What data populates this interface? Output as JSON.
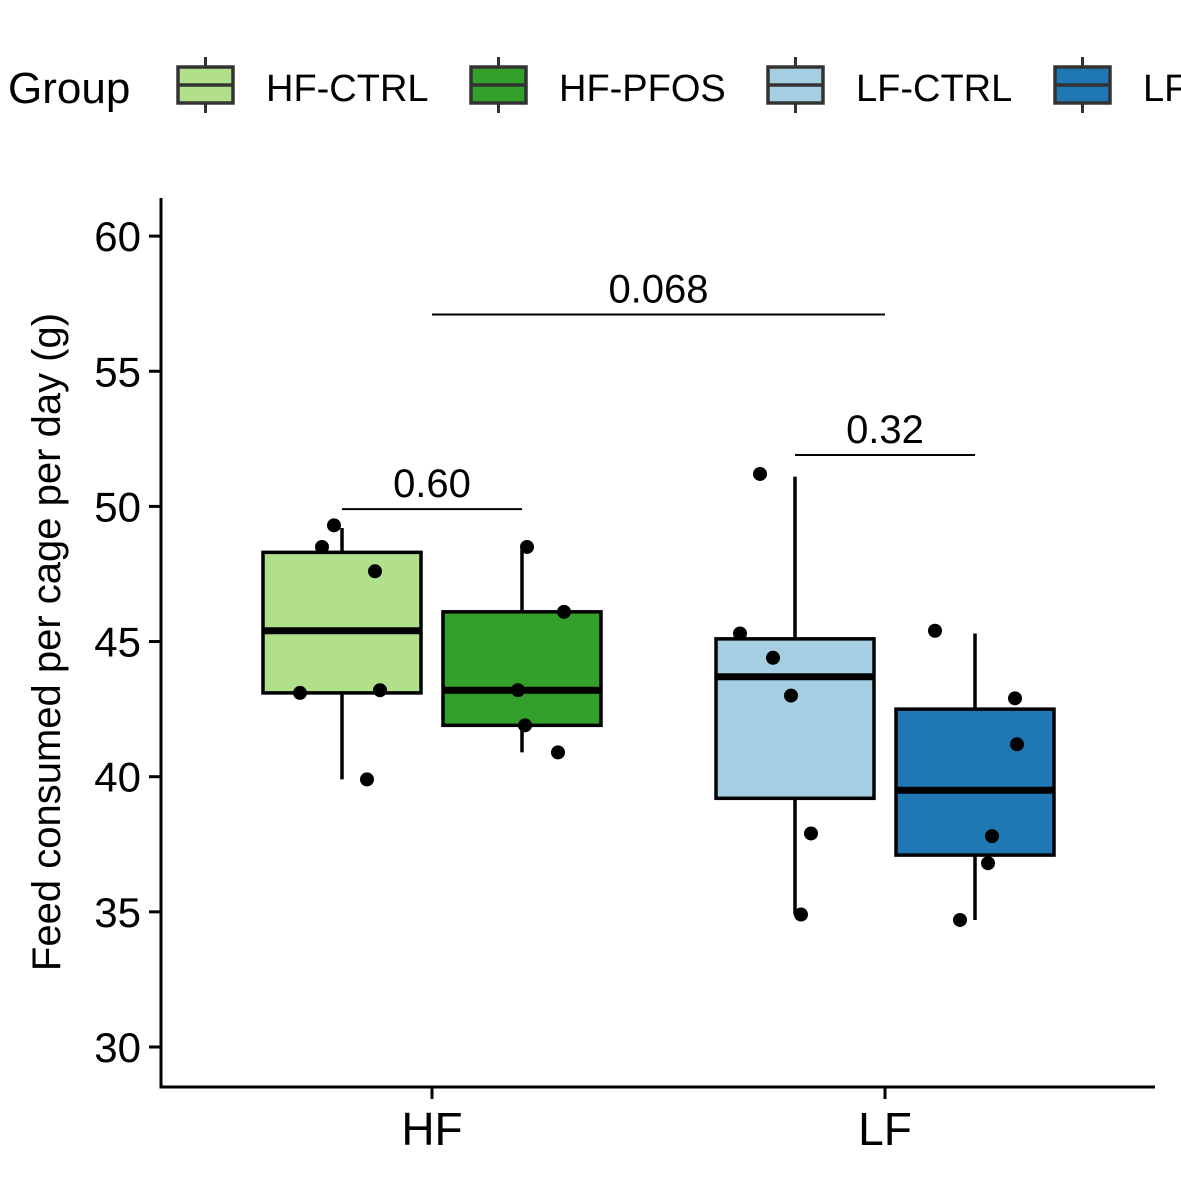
{
  "chart_data": {
    "type": "box",
    "xlabel": "",
    "ylabel": "Feed consumed per cage per day (g)",
    "ylim": [
      29,
      61.5
    ],
    "yticks": [
      30,
      35,
      40,
      45,
      50,
      55,
      60
    ],
    "categories": [
      "HF",
      "LF"
    ],
    "grid": false,
    "legend": {
      "title": "Group",
      "position": "top",
      "entries": [
        {
          "label": "HF-CTRL",
          "color": "#b2df8a"
        },
        {
          "label": "HF-PFOS",
          "color": "#33a02c"
        },
        {
          "label": "LF-CTRL",
          "color": "#a6cee3"
        },
        {
          "label": "LF-PFOS",
          "color": "#1f78b4"
        }
      ]
    },
    "series": [
      {
        "group": "HF-CTRL",
        "category": "HF",
        "color": "#b2df8a",
        "box": {
          "lower_whisker": 39.9,
          "q1": 43.1,
          "median": 45.4,
          "q3": 48.3,
          "upper_whisker": 49.2
        },
        "points": [
          49.3,
          48.5,
          47.6,
          43.1,
          43.2,
          39.9
        ]
      },
      {
        "group": "HF-PFOS",
        "category": "HF",
        "color": "#33a02c",
        "box": {
          "lower_whisker": 40.9,
          "q1": 41.9,
          "median": 43.2,
          "q3": 46.1,
          "upper_whisker": 48.4
        },
        "points": [
          48.5,
          46.1,
          43.2,
          41.9,
          40.9
        ]
      },
      {
        "group": "LF-CTRL",
        "category": "LF",
        "color": "#a6cee3",
        "box": {
          "lower_whisker": 34.9,
          "q1": 39.2,
          "median": 43.7,
          "q3": 45.1,
          "upper_whisker": 51.1
        },
        "points": [
          51.2,
          45.3,
          44.4,
          43.0,
          37.9,
          34.9
        ]
      },
      {
        "group": "LF-PFOS",
        "category": "LF",
        "color": "#1f78b4",
        "box": {
          "lower_whisker": 34.7,
          "q1": 37.1,
          "median": 39.5,
          "q3": 42.5,
          "upper_whisker": 45.3
        },
        "points": [
          45.4,
          42.9,
          41.2,
          37.8,
          36.8,
          34.7
        ]
      }
    ],
    "annotations": [
      {
        "label": "0.60",
        "from": "HF-CTRL",
        "to": "HF-PFOS",
        "y": 49.9
      },
      {
        "label": "0.32",
        "from": "LF-CTRL",
        "to": "LF-PFOS",
        "y": 51.9
      },
      {
        "label": "0.068",
        "from": "HF",
        "to": "LF",
        "y": 57.1
      }
    ]
  }
}
